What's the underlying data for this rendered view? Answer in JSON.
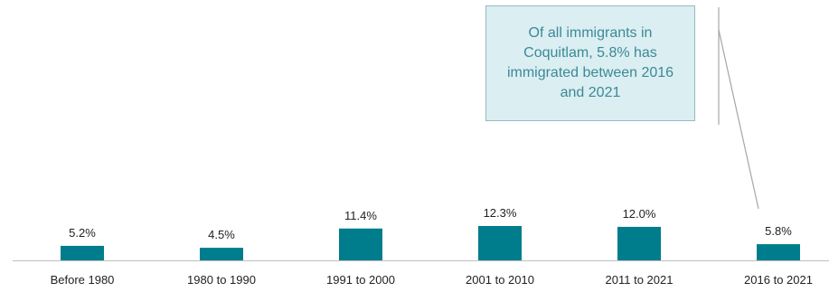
{
  "chart_data": {
    "type": "bar",
    "categories": [
      "Before 1980",
      "1980 to 1990",
      "1991 to 2000",
      "2001 to 2010",
      "2011 to 2021",
      "2016 to 2021"
    ],
    "values": [
      5.2,
      4.5,
      11.4,
      12.3,
      12.0,
      5.8
    ],
    "value_labels": [
      "5.2%",
      "4.5%",
      "11.4%",
      "12.3%",
      "12.0%",
      "5.8%"
    ],
    "ylim": [
      0,
      12.3
    ],
    "grid": false,
    "annotations": [
      {
        "text": "Of all immigrants in Coquitlam, 5.8% has immigrated between 2016 and 2021",
        "points_to": "2016 to 2021"
      }
    ]
  },
  "colors": {
    "bar": "#007d8c",
    "axis": "#bfbfbf",
    "text": "#222222",
    "callout_fill": "#dbeef2",
    "callout_border": "#98b9c0",
    "callout_text": "#3a8a96",
    "leader_line": "#a6a6a6"
  }
}
